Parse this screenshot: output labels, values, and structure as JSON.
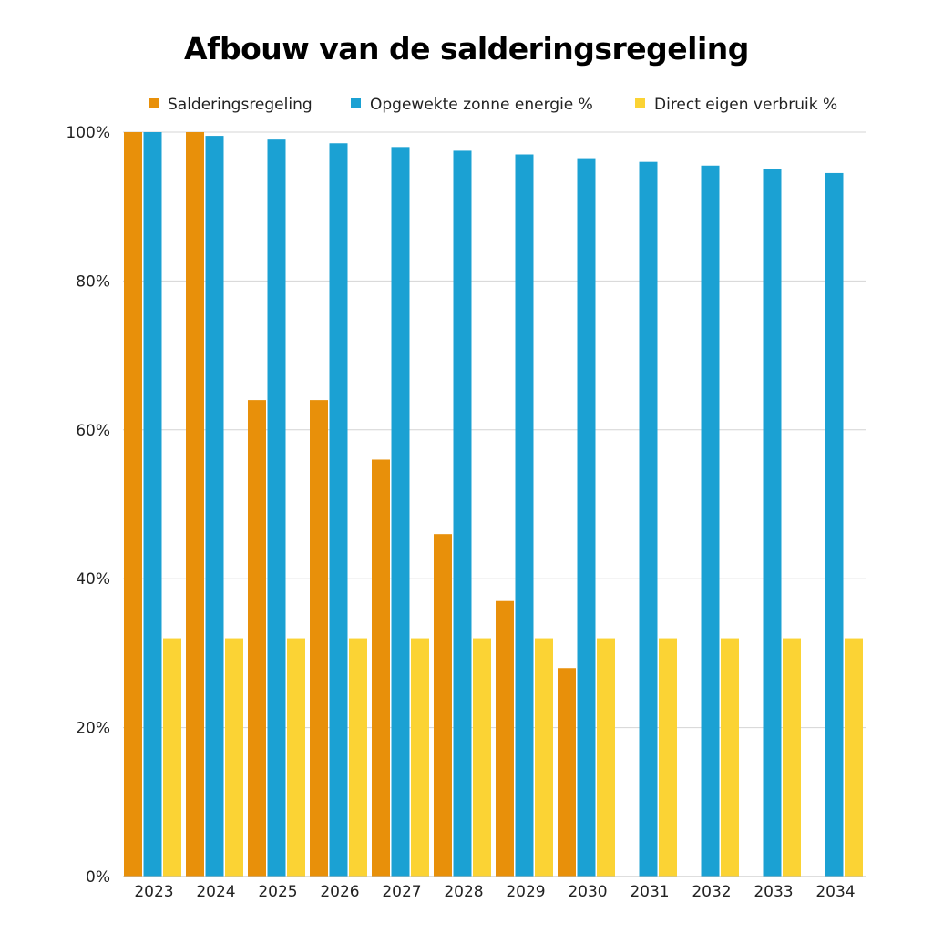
{
  "chart_data": {
    "type": "bar",
    "title": "Afbouw van de salderingsregeling",
    "categories": [
      "2023",
      "2024",
      "2025",
      "2026",
      "2027",
      "2028",
      "2029",
      "2030",
      "2031",
      "2032",
      "2033",
      "2034"
    ],
    "series": [
      {
        "name": "Salderingsregeling",
        "color": "#E8900A",
        "values": [
          100,
          100,
          64,
          64,
          56,
          46,
          37,
          28,
          0,
          0,
          0,
          0
        ]
      },
      {
        "name": "Opgewekte zonne energie %",
        "color": "#1BA1D3",
        "values": [
          100,
          99.5,
          99,
          98.5,
          98,
          97.5,
          97,
          96.5,
          96,
          95.5,
          95,
          94.5
        ]
      },
      {
        "name": "Direct eigen verbruik %",
        "color": "#FBD334",
        "values": [
          32,
          32,
          32,
          32,
          32,
          32,
          32,
          32,
          32,
          32,
          32,
          32
        ]
      }
    ],
    "y_ticks": [
      "0%",
      "20%",
      "40%",
      "60%",
      "80%",
      "100%"
    ],
    "y_tick_values": [
      0,
      20,
      40,
      60,
      80,
      100
    ],
    "ylim": [
      0,
      100
    ],
    "grid": true,
    "legend": "top"
  }
}
